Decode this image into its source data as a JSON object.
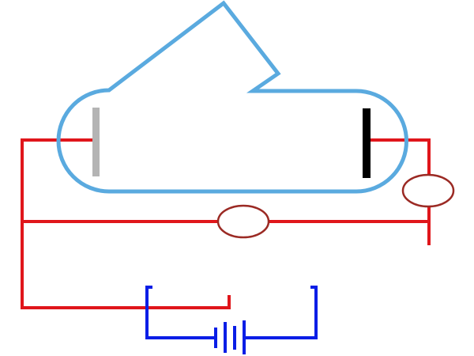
{
  "colors": {
    "background": "#ffffff",
    "tube_outline": "#5aaadf",
    "circuit_wire": "#e0161b",
    "battery_wire": "#0a1ee6",
    "meter_outline": "#9b2a24",
    "left_electrode": "#b4b4b4",
    "right_electrode": "#000000"
  },
  "components": [
    "vacuum-tube",
    "left-electrode",
    "right-electrode",
    "middle-meter",
    "right-meter",
    "battery"
  ]
}
